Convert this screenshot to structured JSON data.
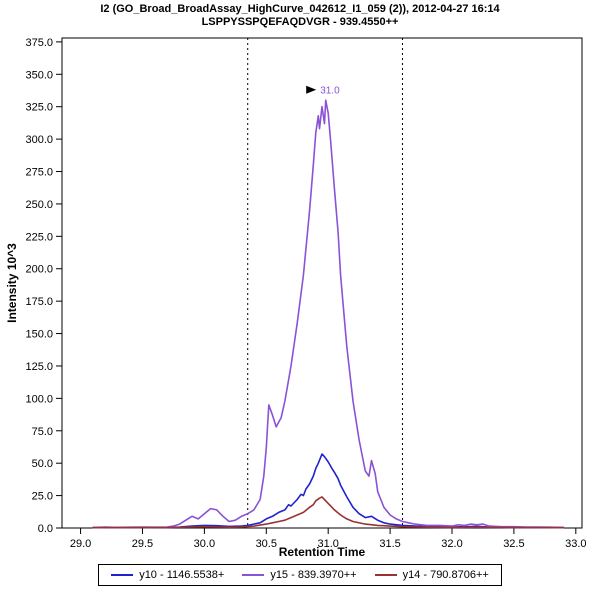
{
  "chart_data": {
    "type": "line",
    "title": "I2 (GO_Broad_BroadAssay_HighCurve_042612_I1_059 (2)), 2012-04-27 16:14",
    "subtitle": "LSPPYSSPQEFAQDVGR - 939.4550++",
    "xlabel": "Retention Time",
    "ylabel": "Intensity 10^3",
    "xlim": [
      29.0,
      33.0
    ],
    "ylim": [
      0,
      375
    ],
    "axis_x_range": [
      28.85,
      33.05
    ],
    "axis_y_range": [
      0,
      378
    ],
    "x_ticks": [
      29.0,
      29.5,
      30.0,
      30.5,
      31.0,
      31.5,
      32.0,
      32.5,
      33.0
    ],
    "y_ticks": [
      0,
      25,
      50,
      75,
      100,
      125,
      150,
      175,
      200,
      225,
      250,
      275,
      300,
      325,
      350,
      375
    ],
    "grid": false,
    "legend_position": "bottom",
    "integration_boundaries": [
      30.35,
      31.6
    ],
    "peak_annotation": {
      "x": 31.0,
      "y": 335,
      "label": "31.0",
      "color": "#8a52d6"
    },
    "series": [
      {
        "id": "y10",
        "name": "y10 - 1146.5538+",
        "color": "#2222cc",
        "points": [
          [
            29.1,
            0.3
          ],
          [
            29.3,
            0.4
          ],
          [
            29.5,
            0.3
          ],
          [
            29.7,
            0.4
          ],
          [
            29.8,
            0.8
          ],
          [
            29.9,
            1.5
          ],
          [
            30.0,
            2
          ],
          [
            30.1,
            1.8
          ],
          [
            30.2,
            1.2
          ],
          [
            30.3,
            1.5
          ],
          [
            30.35,
            2
          ],
          [
            30.4,
            3
          ],
          [
            30.45,
            4
          ],
          [
            30.5,
            7
          ],
          [
            30.55,
            9
          ],
          [
            30.6,
            12
          ],
          [
            30.65,
            14
          ],
          [
            30.68,
            18
          ],
          [
            30.7,
            17
          ],
          [
            30.75,
            22
          ],
          [
            30.78,
            26
          ],
          [
            30.8,
            25
          ],
          [
            30.82,
            30
          ],
          [
            30.85,
            34
          ],
          [
            30.88,
            40
          ],
          [
            30.9,
            46
          ],
          [
            30.92,
            50
          ],
          [
            30.95,
            57
          ],
          [
            30.97,
            55
          ],
          [
            31.0,
            51
          ],
          [
            31.03,
            46
          ],
          [
            31.05,
            43
          ],
          [
            31.08,
            38
          ],
          [
            31.1,
            33
          ],
          [
            31.15,
            24
          ],
          [
            31.2,
            16
          ],
          [
            31.25,
            11
          ],
          [
            31.3,
            8
          ],
          [
            31.35,
            9
          ],
          [
            31.4,
            6
          ],
          [
            31.45,
            4
          ],
          [
            31.5,
            3
          ],
          [
            31.6,
            2
          ],
          [
            31.7,
            1.5
          ],
          [
            31.8,
            1
          ],
          [
            31.9,
            1
          ],
          [
            32.0,
            0.8
          ],
          [
            32.1,
            1
          ],
          [
            32.2,
            1.2
          ],
          [
            32.3,
            0.8
          ],
          [
            32.5,
            0.5
          ],
          [
            32.7,
            0.4
          ],
          [
            32.9,
            0.3
          ]
        ]
      },
      {
        "id": "y15",
        "name": "y15 - 839.3970++",
        "color": "#8a52d6",
        "points": [
          [
            29.1,
            0.5
          ],
          [
            29.2,
            0.8
          ],
          [
            29.3,
            0.5
          ],
          [
            29.4,
            0.6
          ],
          [
            29.5,
            0.8
          ],
          [
            29.6,
            0.6
          ],
          [
            29.7,
            0.8
          ],
          [
            29.75,
            1.5
          ],
          [
            29.8,
            3
          ],
          [
            29.85,
            6
          ],
          [
            29.9,
            9
          ],
          [
            29.95,
            7
          ],
          [
            30.0,
            11
          ],
          [
            30.05,
            15
          ],
          [
            30.1,
            14
          ],
          [
            30.15,
            9
          ],
          [
            30.2,
            5
          ],
          [
            30.25,
            6
          ],
          [
            30.3,
            9
          ],
          [
            30.35,
            11
          ],
          [
            30.4,
            14
          ],
          [
            30.45,
            22
          ],
          [
            30.48,
            40
          ],
          [
            30.5,
            62
          ],
          [
            30.52,
            95
          ],
          [
            30.55,
            87
          ],
          [
            30.58,
            78
          ],
          [
            30.62,
            85
          ],
          [
            30.65,
            98
          ],
          [
            30.7,
            125
          ],
          [
            30.75,
            158
          ],
          [
            30.8,
            195
          ],
          [
            30.85,
            245
          ],
          [
            30.88,
            280
          ],
          [
            30.9,
            305
          ],
          [
            30.92,
            318
          ],
          [
            30.93,
            308
          ],
          [
            30.95,
            325
          ],
          [
            30.97,
            312
          ],
          [
            30.98,
            330
          ],
          [
            31.0,
            320
          ],
          [
            31.02,
            298
          ],
          [
            31.05,
            262
          ],
          [
            31.08,
            228
          ],
          [
            31.1,
            195
          ],
          [
            31.13,
            162
          ],
          [
            31.15,
            140
          ],
          [
            31.2,
            98
          ],
          [
            31.25,
            68
          ],
          [
            31.3,
            44
          ],
          [
            31.33,
            40
          ],
          [
            31.35,
            52
          ],
          [
            31.38,
            42
          ],
          [
            31.4,
            28
          ],
          [
            31.45,
            16
          ],
          [
            31.5,
            10
          ],
          [
            31.55,
            7
          ],
          [
            31.6,
            5
          ],
          [
            31.65,
            4
          ],
          [
            31.7,
            3
          ],
          [
            31.75,
            2.5
          ],
          [
            31.8,
            2
          ],
          [
            31.9,
            2
          ],
          [
            32.0,
            1.5
          ],
          [
            32.05,
            2.5
          ],
          [
            32.1,
            2
          ],
          [
            32.15,
            3
          ],
          [
            32.2,
            2.5
          ],
          [
            32.25,
            3
          ],
          [
            32.3,
            1.5
          ],
          [
            32.4,
            1
          ],
          [
            32.5,
            1
          ],
          [
            32.6,
            0.8
          ],
          [
            32.7,
            0.8
          ],
          [
            32.8,
            0.6
          ],
          [
            32.9,
            0.5
          ]
        ]
      },
      {
        "id": "y14",
        "name": "y14 - 790.8706++",
        "color": "#993333",
        "points": [
          [
            29.1,
            0.2
          ],
          [
            29.3,
            0.3
          ],
          [
            29.5,
            0.3
          ],
          [
            29.7,
            0.4
          ],
          [
            29.9,
            0.8
          ],
          [
            30.0,
            1
          ],
          [
            30.1,
            0.8
          ],
          [
            30.2,
            0.6
          ],
          [
            30.3,
            0.8
          ],
          [
            30.4,
            1.5
          ],
          [
            30.5,
            3
          ],
          [
            30.55,
            4
          ],
          [
            30.6,
            5
          ],
          [
            30.65,
            6
          ],
          [
            30.7,
            8
          ],
          [
            30.75,
            10
          ],
          [
            30.8,
            12
          ],
          [
            30.85,
            16
          ],
          [
            30.88,
            18
          ],
          [
            30.9,
            21
          ],
          [
            30.93,
            23
          ],
          [
            30.95,
            24
          ],
          [
            30.98,
            21
          ],
          [
            31.0,
            19
          ],
          [
            31.05,
            14
          ],
          [
            31.1,
            10
          ],
          [
            31.15,
            7
          ],
          [
            31.2,
            5
          ],
          [
            31.3,
            3
          ],
          [
            31.4,
            2
          ],
          [
            31.5,
            1.5
          ],
          [
            31.6,
            1
          ],
          [
            31.7,
            0.8
          ],
          [
            31.8,
            0.6
          ],
          [
            32.0,
            0.5
          ],
          [
            32.2,
            0.6
          ],
          [
            32.4,
            0.4
          ],
          [
            32.6,
            0.3
          ],
          [
            32.9,
            0.2
          ]
        ]
      }
    ]
  }
}
